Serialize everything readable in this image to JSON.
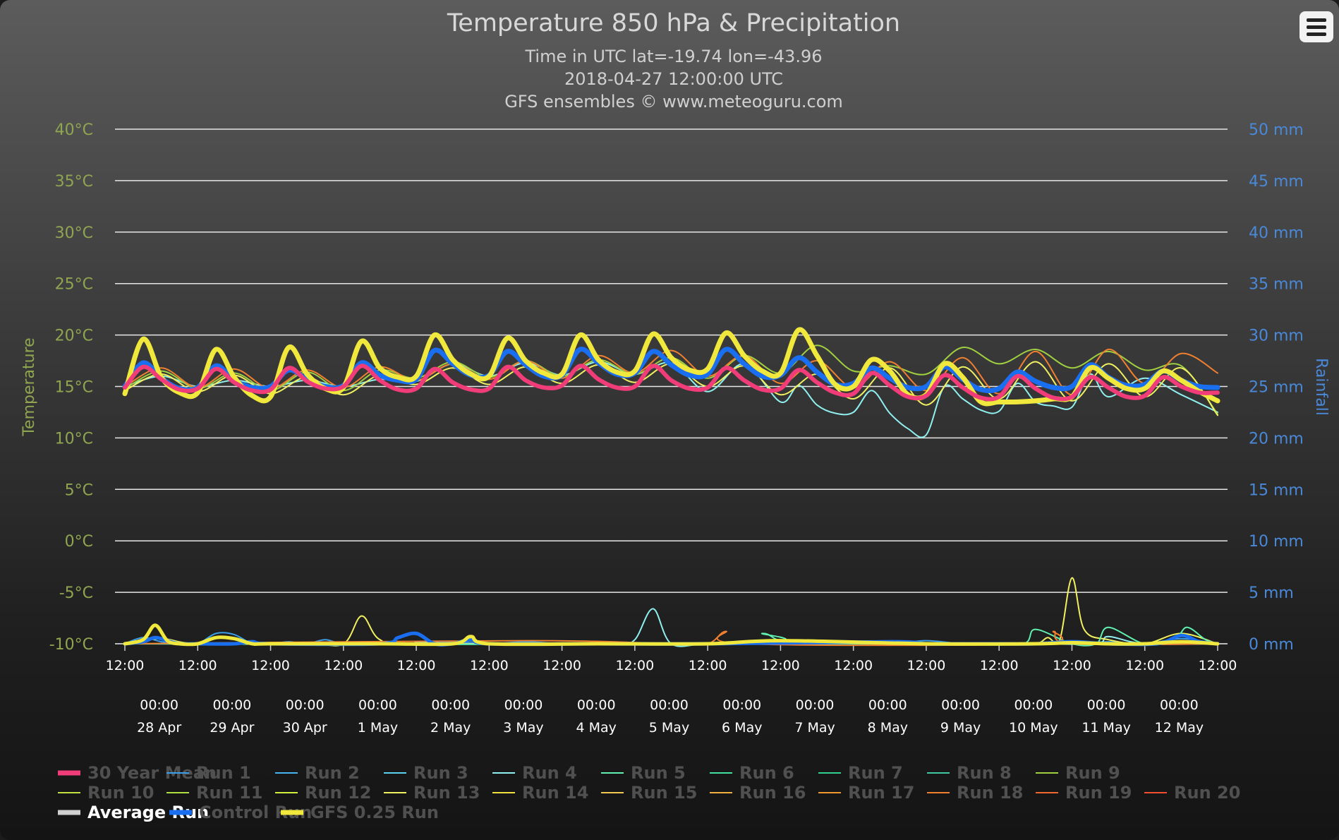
{
  "colors": {
    "temperature_axis": "#90a550",
    "rainfall_axis": "#4a88d8",
    "grid": "#e6e6e6",
    "title": "#d8d8d8",
    "mean": "#f03c78",
    "control": "#1a6ff0",
    "gfs": "#f0e83c",
    "average": "#d0d0d0"
  },
  "header": {
    "menu_icon": "hamburger-menu-icon"
  },
  "chart_data": {
    "type": "line",
    "title": "Temperature 850 hPa & Precipitation",
    "subtitle_lines": [
      "Time in UTC lat=-19.74 lon=-43.96",
      "2018-04-27 12:00:00 UTC",
      "GFS ensembles © www.meteoguru.com"
    ],
    "y_left": {
      "label": "Temperature",
      "range": [
        -10,
        40
      ],
      "ticks": [
        "40°C",
        "35°C",
        "30°C",
        "25°C",
        "20°C",
        "15°C",
        "10°C",
        "5°C",
        "0°C",
        "-5°C",
        "-10°C"
      ]
    },
    "y_right": {
      "label": "Rainfall",
      "range": [
        0,
        50
      ],
      "ticks": [
        "50 mm",
        "45 mm",
        "40 mm",
        "35 mm",
        "30 mm",
        "25 mm",
        "20 mm",
        "15 mm",
        "10 mm",
        "5 mm",
        "0 mm"
      ]
    },
    "x": {
      "range_hours": [
        0,
        360
      ],
      "ticks_hour": "12:00",
      "tick_count": 16,
      "midnight_label": "00:00",
      "day_labels": [
        "28 Apr",
        "29 Apr",
        "30 Apr",
        "1 May",
        "2 May",
        "3 May",
        "4 May",
        "5 May",
        "6 May",
        "7 May",
        "8 May",
        "9 May",
        "10 May",
        "11 May",
        "12 May"
      ]
    },
    "grid": true,
    "legend_position": "bottom",
    "legend": [
      {
        "name": "30 Year Mean",
        "color": "#f03c78",
        "thick": true
      },
      {
        "name": "Run 1",
        "color": "#3a9ee8"
      },
      {
        "name": "Run 2",
        "color": "#45b5f0"
      },
      {
        "name": "Run 3",
        "color": "#5ad2f0"
      },
      {
        "name": "Run 4",
        "color": "#90f0f0"
      },
      {
        "name": "Run 5",
        "color": "#60f0b0"
      },
      {
        "name": "Run 6",
        "color": "#40e0a0"
      },
      {
        "name": "Run 7",
        "color": "#30d090"
      },
      {
        "name": "Run 8",
        "color": "#40c8a0"
      },
      {
        "name": "Run 9",
        "color": "#a0d040"
      },
      {
        "name": "Run 10",
        "color": "#c0e040"
      },
      {
        "name": "Run 11",
        "color": "#b0e040"
      },
      {
        "name": "Run 12",
        "color": "#d0f040"
      },
      {
        "name": "Run 13",
        "color": "#f0f060"
      },
      {
        "name": "Run 14",
        "color": "#f0e040"
      },
      {
        "name": "Run 15",
        "color": "#f0c850"
      },
      {
        "name": "Run 16",
        "color": "#f0b040"
      },
      {
        "name": "Run 17",
        "color": "#f09830"
      },
      {
        "name": "Run 18",
        "color": "#f08030"
      },
      {
        "name": "Run 19",
        "color": "#f06830"
      },
      {
        "name": "Run 20",
        "color": "#f05030"
      },
      {
        "name": "Average Run",
        "color": "#d0d0d0",
        "thick": true,
        "active": true
      },
      {
        "name": "Control Run",
        "color": "#1a6ff0",
        "thick": true
      },
      {
        "name": "GFS 0.25 Run",
        "color": "#f0e83c",
        "thick": true
      }
    ],
    "series": [
      {
        "name": "30 Year Mean",
        "kind": "temp",
        "hours": [
          0,
          6,
          12,
          18,
          24,
          30,
          36,
          42,
          48,
          54,
          60,
          66,
          72,
          78,
          84,
          90,
          96,
          102,
          108,
          114,
          120,
          126,
          132,
          138,
          144,
          150,
          156,
          162,
          168,
          174,
          180,
          186,
          192,
          198,
          204,
          210,
          216,
          222,
          228,
          234,
          240,
          246,
          252,
          258,
          264,
          270,
          276,
          282,
          288,
          294,
          300,
          306,
          312,
          318,
          324,
          330,
          336,
          342,
          348,
          354,
          360
        ],
        "values": [
          14.9,
          16.9,
          15.7,
          14.7,
          14.8,
          16.7,
          15.4,
          14.6,
          14.7,
          16.8,
          15.5,
          14.8,
          15.0,
          17.0,
          15.6,
          14.7,
          14.8,
          16.7,
          15.4,
          14.7,
          14.8,
          16.9,
          15.6,
          14.9,
          15.1,
          17.0,
          15.7,
          14.9,
          15.0,
          17.0,
          15.6,
          14.8,
          14.9,
          16.8,
          15.6,
          14.7,
          14.8,
          16.6,
          15.4,
          14.4,
          14.3,
          16.3,
          15.1,
          14.0,
          14.1,
          16.1,
          14.9,
          13.9,
          14.0,
          16.0,
          14.8,
          13.9,
          14.0,
          15.9,
          14.9,
          14.0,
          14.1,
          15.9,
          15.0,
          14.4,
          14.4
        ]
      },
      {
        "name": "Control Run",
        "kind": "temp",
        "hours": [
          0,
          6,
          12,
          18,
          24,
          30,
          36,
          42,
          48,
          54,
          60,
          66,
          72,
          78,
          84,
          90,
          96,
          102,
          108,
          114,
          120,
          126,
          132,
          138,
          144,
          150,
          156,
          162,
          168,
          174,
          180,
          186,
          192,
          198,
          204,
          210,
          216,
          222,
          228,
          234,
          240,
          246,
          252,
          258,
          264,
          270,
          276,
          282,
          288,
          294,
          300,
          306,
          312,
          318,
          324,
          330,
          336,
          342,
          348,
          354,
          360
        ],
        "values": [
          15.0,
          17.3,
          15.8,
          14.8,
          14.9,
          17.0,
          15.6,
          14.9,
          15.0,
          16.6,
          15.7,
          15.0,
          15.1,
          17.3,
          16.1,
          15.6,
          15.7,
          18.5,
          17.2,
          16.1,
          16.1,
          18.4,
          17.1,
          16.0,
          16.1,
          18.6,
          17.3,
          16.2,
          16.3,
          18.4,
          17.1,
          16.1,
          16.2,
          18.6,
          17.2,
          16.0,
          16.1,
          17.8,
          16.4,
          15.2,
          15.3,
          16.8,
          15.8,
          14.9,
          15.0,
          16.9,
          15.7,
          14.7,
          14.8,
          16.4,
          15.5,
          14.9,
          15.0,
          17.1,
          15.9,
          15.1,
          15.2,
          16.5,
          15.6,
          15.0,
          14.9
        ]
      },
      {
        "name": "GFS 0.25 Run",
        "kind": "temp",
        "hours": [
          0,
          6,
          12,
          18,
          24,
          30,
          36,
          42,
          48,
          54,
          60,
          66,
          72,
          78,
          84,
          90,
          96,
          102,
          108,
          114,
          120,
          126,
          132,
          138,
          144,
          150,
          156,
          162,
          168,
          174,
          180,
          186,
          192,
          198,
          204,
          210,
          216,
          222,
          228,
          234,
          240,
          246,
          252,
          258,
          264,
          270,
          276,
          282,
          288,
          294,
          300,
          306,
          312,
          318,
          324,
          330,
          336,
          342,
          348,
          354,
          360
        ],
        "values": [
          14.3,
          19.6,
          15.9,
          14.4,
          14.4,
          18.6,
          15.9,
          14.1,
          14.0,
          18.8,
          16.2,
          14.8,
          14.9,
          19.4,
          16.8,
          15.9,
          16.0,
          20.0,
          17.6,
          16.2,
          16.0,
          19.7,
          17.5,
          16.3,
          16.2,
          20.0,
          17.6,
          16.4,
          16.5,
          20.1,
          17.8,
          16.6,
          16.7,
          20.2,
          18.0,
          16.5,
          16.3,
          20.5,
          18.0,
          15.2,
          15.0,
          17.6,
          16.5,
          14.2,
          14.2,
          17.2,
          15.9,
          13.5,
          13.5,
          13.5,
          13.6,
          13.8,
          14.0,
          16.8,
          15.8,
          14.8,
          14.8,
          16.5,
          15.6,
          14.5,
          13.6
        ]
      },
      {
        "name": "Run 4",
        "kind": "temp",
        "hours": [
          0,
          12,
          24,
          36,
          48,
          60,
          72,
          84,
          96,
          108,
          120,
          132,
          144,
          156,
          168,
          180,
          192,
          204,
          216,
          222,
          228,
          234,
          240,
          246,
          252,
          258,
          264,
          270,
          276,
          282,
          288,
          294,
          300,
          306,
          312,
          318,
          324,
          336,
          348,
          360
        ],
        "values": [
          15.0,
          16.0,
          15.0,
          15.6,
          15.0,
          15.6,
          15.0,
          15.7,
          15.5,
          17.2,
          16.0,
          17.3,
          16.1,
          17.4,
          16.2,
          17.3,
          14.5,
          17.2,
          13.5,
          15.1,
          13.2,
          12.4,
          12.5,
          14.6,
          12.4,
          10.9,
          10.3,
          15.0,
          13.8,
          12.7,
          12.6,
          15.3,
          13.5,
          13.1,
          13.0,
          16.2,
          14.0,
          15.8,
          14.2,
          12.5
        ]
      },
      {
        "name": "Run 9",
        "kind": "temp",
        "hours": [
          0,
          12,
          24,
          36,
          48,
          60,
          72,
          84,
          96,
          108,
          120,
          132,
          144,
          156,
          168,
          180,
          192,
          204,
          216,
          228,
          240,
          252,
          264,
          276,
          288,
          300,
          312,
          324,
          336,
          348,
          360
        ],
        "values": [
          14.8,
          16.5,
          14.8,
          16.3,
          14.6,
          16.4,
          14.6,
          16.6,
          15.8,
          17.4,
          15.9,
          17.5,
          16.0,
          17.6,
          16.2,
          17.8,
          15.8,
          18.0,
          16.3,
          19.0,
          16.5,
          17.0,
          16.2,
          18.8,
          17.2,
          18.6,
          16.8,
          18.4,
          16.6,
          17.0,
          12.3
        ]
      },
      {
        "name": "Run 18",
        "kind": "temp",
        "hours": [
          0,
          12,
          24,
          36,
          48,
          60,
          72,
          84,
          96,
          108,
          120,
          132,
          144,
          156,
          168,
          180,
          192,
          204,
          216,
          228,
          240,
          252,
          264,
          276,
          288,
          300,
          312,
          324,
          336,
          348,
          360
        ],
        "values": [
          15.0,
          16.8,
          14.9,
          16.7,
          14.8,
          16.6,
          14.9,
          16.9,
          15.6,
          17.2,
          15.7,
          17.5,
          15.8,
          18.0,
          16.3,
          18.5,
          16.0,
          18.0,
          15.3,
          17.5,
          14.9,
          17.4,
          14.6,
          17.8,
          14.3,
          18.4,
          14.2,
          18.6,
          15.3,
          18.2,
          16.3
        ]
      },
      {
        "name": "Run 13",
        "kind": "temp",
        "hours": [
          0,
          12,
          24,
          36,
          48,
          60,
          72,
          84,
          96,
          108,
          120,
          132,
          144,
          156,
          168,
          180,
          192,
          204,
          216,
          228,
          240,
          252,
          264,
          276,
          288,
          300,
          312,
          324,
          336,
          348,
          360
        ],
        "values": [
          14.6,
          16.2,
          14.5,
          16.1,
          14.3,
          15.9,
          14.2,
          16.1,
          15.2,
          16.8,
          15.2,
          16.9,
          15.3,
          17.1,
          15.4,
          17.2,
          15.0,
          17.0,
          14.2,
          16.2,
          13.8,
          16.8,
          13.2,
          16.9,
          13.8,
          17.4,
          13.6,
          17.2,
          14.0,
          16.8,
          12.2
        ]
      },
      {
        "name": "Run 1",
        "kind": "rain",
        "hours": [
          0,
          6,
          12,
          18,
          24,
          30,
          36,
          42,
          48,
          54,
          60,
          66,
          72,
          84,
          90,
          96,
          108,
          120,
          132,
          144,
          156,
          168,
          180,
          192,
          204,
          216,
          228,
          240,
          252,
          264,
          276,
          288,
          300,
          312,
          324,
          336,
          348,
          360
        ],
        "values": [
          0,
          0.6,
          0.2,
          0,
          0,
          1.0,
          0.9,
          0,
          0,
          0.2,
          0,
          0.4,
          0,
          0.2,
          0,
          0,
          0.2,
          0,
          0.2,
          0,
          0,
          0,
          0,
          0,
          0,
          0,
          0,
          0,
          0,
          0.3,
          0,
          0,
          0.1,
          0,
          0.2,
          0,
          0.5,
          0
        ]
      },
      {
        "name": "Run 4",
        "kind": "rain",
        "hours": [
          0,
          90,
          96,
          108,
          120,
          144,
          162,
          168,
          174,
          180,
          192,
          216,
          228,
          240,
          264,
          300,
          320,
          324,
          336,
          360
        ],
        "values": [
          0,
          0,
          0.2,
          0,
          0,
          0,
          0,
          0.4,
          3.4,
          0,
          0,
          0,
          0,
          0,
          0,
          0,
          0,
          0.7,
          0,
          0
        ]
      },
      {
        "name": "Run 13",
        "kind": "rain",
        "hours": [
          0,
          12,
          24,
          60,
          72,
          78,
          84,
          96,
          168,
          216,
          288,
          300,
          304,
          308,
          312,
          316,
          324,
          336,
          348,
          360
        ],
        "values": [
          0,
          0.5,
          0,
          0,
          0,
          2.7,
          0.4,
          0,
          0,
          0,
          0,
          0,
          0.6,
          0.4,
          6.4,
          1.4,
          0.4,
          0,
          1.0,
          0
        ]
      },
      {
        "name": "Run 5",
        "kind": "rain",
        "hours": [
          0,
          200,
          210,
          216,
          228,
          280,
          296,
          300,
          312,
          320,
          324,
          336,
          346,
          350,
          356,
          360
        ],
        "values": [
          0,
          0,
          1.0,
          0.3,
          0,
          0,
          0,
          1.4,
          0,
          0,
          1.6,
          0,
          0.6,
          1.6,
          0.4,
          0
        ]
      },
      {
        "name": "Run 18",
        "kind": "rain",
        "hours": [
          0,
          132,
          180,
          192,
          198,
          204,
          300,
          306,
          312,
          360
        ],
        "values": [
          0,
          0.3,
          0,
          0,
          1.2,
          0,
          0,
          1.2,
          0,
          0
        ]
      },
      {
        "name": "Control Run",
        "kind": "rain",
        "hours": [
          0,
          6,
          10,
          14,
          18,
          24,
          36,
          42,
          48,
          84,
          90,
          96,
          102,
          108,
          114,
          120,
          156,
          192,
          252,
          264,
          276,
          288,
          300,
          312,
          324,
          340,
          348,
          354,
          360
        ],
        "values": [
          0,
          0.2,
          0.6,
          0.3,
          0,
          0,
          0,
          0.2,
          0,
          0,
          0.6,
          1.0,
          0,
          0,
          0.4,
          0,
          0,
          0,
          0.2,
          0,
          0,
          0,
          0,
          0.2,
          0,
          0,
          0.8,
          0.2,
          0
        ]
      },
      {
        "name": "GFS 0.25 Run",
        "kind": "rain",
        "hours": [
          0,
          6,
          10,
          14,
          18,
          24,
          30,
          36,
          42,
          48,
          84,
          108,
          114,
          120,
          156,
          192,
          216,
          264,
          300,
          312,
          324,
          336,
          348,
          360
        ],
        "values": [
          0,
          0.4,
          1.8,
          0.3,
          0,
          0,
          0.6,
          0.5,
          0,
          0,
          0,
          0,
          0.7,
          0,
          0,
          0,
          0.3,
          0,
          0,
          0.1,
          0,
          0,
          0.2,
          0
        ]
      }
    ]
  }
}
